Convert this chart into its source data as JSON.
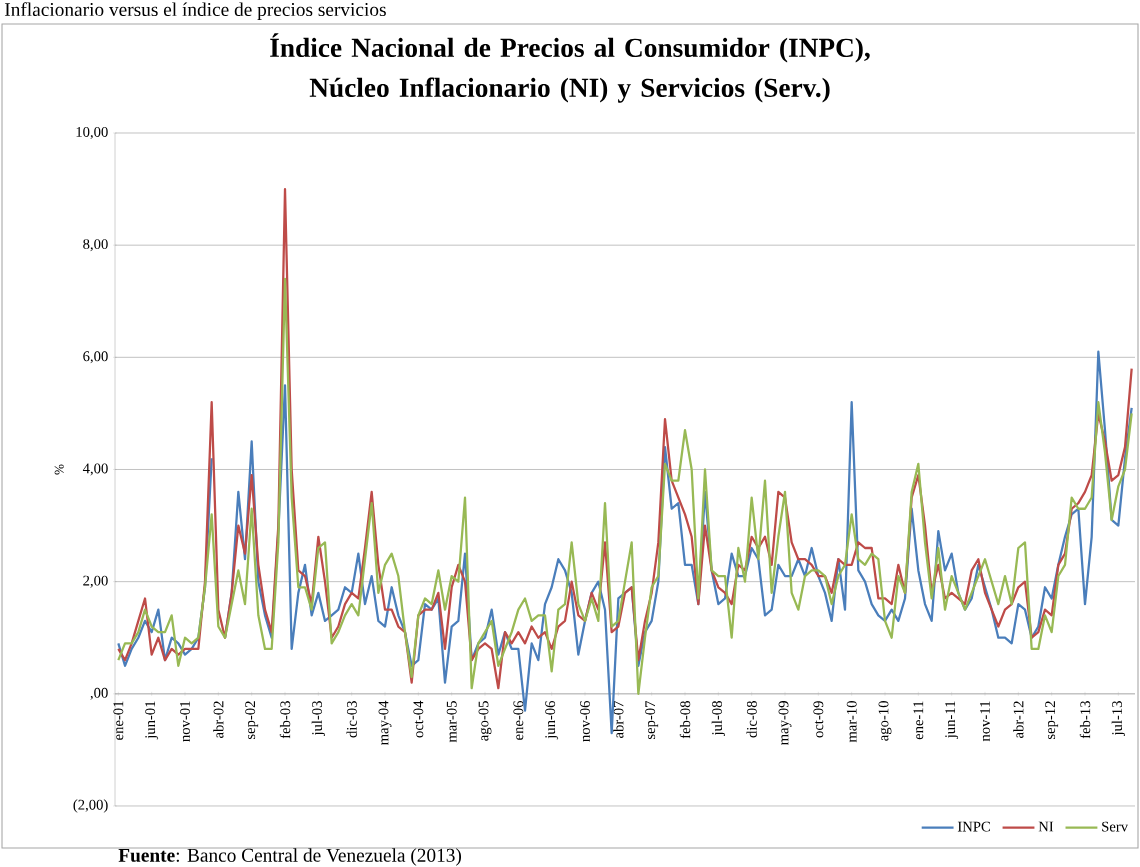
{
  "chart_data": {
    "type": "line",
    "title": "Índice Nacional de Precios al Consumidor (INPC), Núcleo Inflacionario (NI) y Servicios (Serv.)",
    "ylabel": "%",
    "annotations": [
      "Inflacionario versus el índice de precios servicios",
      "**Fuente**: Banco Central de Venezuela (2013)"
    ],
    "categories": [
      "ene-01",
      null,
      null,
      null,
      null,
      "jun-01",
      null,
      null,
      null,
      null,
      "nov-01",
      null,
      null,
      null,
      null,
      "abr-02",
      null,
      null,
      null,
      null,
      "sep-02",
      null,
      null,
      null,
      null,
      "feb-03",
      null,
      null,
      null,
      null,
      "jul-03",
      null,
      null,
      null,
      null,
      "dic-03",
      null,
      null,
      null,
      null,
      "may-04",
      null,
      null,
      null,
      null,
      "oct-04",
      null,
      null,
      null,
      null,
      "mar-05",
      null,
      null,
      null,
      null,
      "ago-05",
      null,
      null,
      null,
      null,
      "ene-06",
      null,
      null,
      null,
      null,
      "jun-06",
      null,
      null,
      null,
      null,
      "nov-06",
      null,
      null,
      null,
      null,
      "abr-07",
      null,
      null,
      null,
      null,
      "sep-07",
      null,
      null,
      null,
      null,
      "feb-08",
      null,
      null,
      null,
      null,
      "jul-08",
      null,
      null,
      null,
      null,
      "dic-08",
      null,
      null,
      null,
      null,
      "may-09",
      null,
      null,
      null,
      null,
      "oct-09",
      null,
      null,
      null,
      null,
      "mar-10",
      null,
      null,
      null,
      null,
      "ago-10",
      null,
      null,
      null,
      null,
      "ene-11",
      null,
      null,
      null,
      null,
      "jun-11",
      null,
      null,
      null,
      null,
      "nov-11",
      null,
      null,
      null,
      null,
      "abr-12",
      null,
      null,
      null,
      null,
      "sep-12",
      null,
      null,
      null,
      null,
      "feb-13",
      null,
      null,
      null,
      null,
      "jul-13",
      null,
      null
    ],
    "series": [
      {
        "name": "INPC",
        "color": "#4a7ebb",
        "values": [
          0.9,
          0.5,
          0.8,
          1.0,
          1.3,
          1.1,
          1.5,
          0.6,
          1.0,
          0.9,
          0.7,
          0.8,
          1.0,
          1.9,
          4.2,
          null,
          1.0,
          1.8,
          3.6,
          2.4,
          4.5,
          2.0,
          1.4,
          1.0,
          2.9,
          5.5,
          0.8,
          1.8,
          2.3,
          1.4,
          1.8,
          1.3,
          1.4,
          1.5,
          1.9,
          1.8,
          2.5,
          1.6,
          2.1,
          1.3,
          1.2,
          1.9,
          1.4,
          1.1,
          0.5,
          0.6,
          1.6,
          1.5,
          1.7,
          0.2,
          1.2,
          1.3,
          2.5,
          0.6,
          0.9,
          1.0,
          1.5,
          0.7,
          1.1,
          0.8,
          0.8,
          -0.3,
          0.9,
          0.6,
          1.6,
          1.9,
          2.4,
          2.2,
          1.8,
          0.7,
          1.3,
          1.8,
          2.0,
          1.5,
          -0.7,
          1.7,
          1.8,
          1.9,
          0.5,
          1.1,
          1.3,
          2.0,
          4.4,
          3.3,
          3.4,
          2.3,
          2.3,
          1.6,
          3.6,
          2.2,
          1.6,
          1.7,
          2.5,
          2.1,
          2.1,
          2.6,
          2.4,
          1.4,
          1.5,
          2.3,
          2.1,
          2.1,
          2.4,
          2.1,
          2.6,
          2.1,
          1.8,
          1.3,
          2.4,
          1.5,
          5.2,
          2.2,
          2.0,
          1.6,
          1.4,
          1.3,
          1.5,
          1.3,
          1.7,
          3.3,
          2.2,
          1.6,
          1.3,
          2.9,
          2.2,
          2.5,
          1.8,
          1.5,
          1.7,
          2.3,
          1.9,
          1.5,
          1.0,
          1.0,
          0.9,
          1.6,
          1.5,
          1.0,
          1.2,
          1.9,
          1.7,
          2.3,
          2.8,
          3.2,
          3.3,
          1.6,
          2.8,
          6.1,
          4.7,
          3.1,
          3.0,
          4.2,
          5.1
        ]
      },
      {
        "name": "NI",
        "color": "#be4b48",
        "values": [
          0.8,
          0.6,
          0.9,
          1.3,
          1.7,
          0.7,
          1.0,
          0.6,
          0.8,
          0.7,
          0.8,
          0.8,
          0.8,
          2.0,
          5.2,
          1.5,
          1.0,
          1.8,
          3.0,
          2.5,
          3.9,
          2.3,
          1.5,
          1.1,
          3.0,
          9.0,
          4.0,
          2.2,
          2.1,
          1.6,
          2.8,
          2.0,
          1.0,
          1.2,
          1.6,
          1.8,
          1.7,
          2.6,
          3.6,
          2.3,
          1.5,
          1.5,
          1.2,
          1.1,
          0.2,
          1.4,
          1.5,
          1.5,
          1.8,
          0.8,
          1.9,
          2.3,
          2.0,
          0.6,
          0.8,
          0.9,
          0.8,
          0.1,
          1.1,
          0.9,
          1.1,
          0.9,
          1.2,
          1.0,
          1.1,
          0.8,
          1.2,
          1.3,
          2.0,
          1.4,
          1.3,
          1.8,
          1.5,
          2.7,
          1.1,
          1.2,
          1.8,
          1.9,
          0.6,
          1.3,
          1.8,
          2.7,
          4.9,
          3.8,
          3.5,
          3.2,
          2.8,
          1.6,
          3.0,
          2.2,
          1.9,
          1.8,
          1.6,
          2.3,
          2.2,
          2.8,
          2.6,
          2.8,
          2.3,
          3.6,
          3.5,
          2.7,
          2.4,
          2.4,
          2.3,
          2.1,
          2.1,
          1.8,
          2.4,
          2.3,
          2.3,
          2.7,
          2.6,
          2.6,
          1.7,
          1.7,
          1.6,
          2.3,
          1.8,
          3.5,
          3.9,
          3.0,
          1.8,
          2.3,
          1.7,
          1.8,
          1.7,
          1.6,
          2.2,
          2.4,
          1.8,
          1.5,
          1.2,
          1.5,
          1.6,
          1.9,
          2.0,
          1.0,
          1.1,
          1.5,
          1.4,
          2.3,
          2.5,
          3.3,
          3.4,
          3.6,
          3.9,
          5.0,
          4.5,
          3.8,
          3.9,
          4.4,
          5.8
        ]
      },
      {
        "name": "Serv",
        "color": "#98b954",
        "values": [
          0.6,
          0.9,
          0.9,
          1.1,
          1.5,
          1.2,
          1.1,
          1.1,
          1.4,
          0.5,
          1.0,
          0.9,
          1.0,
          1.9,
          3.2,
          1.2,
          1.0,
          1.6,
          2.2,
          1.6,
          3.3,
          1.4,
          0.8,
          0.8,
          2.7,
          7.4,
          3.5,
          1.9,
          1.9,
          1.5,
          2.6,
          2.7,
          0.9,
          1.1,
          1.4,
          1.6,
          1.4,
          2.4,
          3.4,
          1.8,
          2.3,
          2.5,
          2.1,
          1.1,
          0.3,
          1.4,
          1.7,
          1.6,
          2.2,
          1.5,
          2.1,
          2.0,
          3.5,
          0.1,
          0.9,
          1.1,
          1.3,
          0.5,
          0.8,
          1.1,
          1.5,
          1.7,
          1.3,
          1.4,
          1.4,
          0.4,
          1.5,
          1.6,
          2.7,
          1.6,
          1.3,
          1.7,
          1.3,
          3.4,
          1.2,
          1.3,
          2.0,
          2.7,
          0.0,
          1.0,
          1.9,
          2.1,
          4.1,
          3.8,
          3.8,
          4.7,
          4.0,
          1.7,
          4.0,
          2.2,
          2.1,
          2.1,
          1.0,
          2.6,
          2.0,
          3.5,
          2.4,
          3.8,
          1.8,
          2.8,
          3.6,
          1.8,
          1.5,
          2.1,
          2.2,
          2.2,
          2.1,
          1.6,
          2.1,
          2.3,
          3.2,
          2.4,
          2.3,
          2.5,
          2.4,
          1.3,
          1.0,
          2.1,
          1.8,
          3.6,
          4.1,
          2.7,
          1.7,
          2.6,
          1.5,
          2.1,
          1.8,
          1.5,
          1.8,
          2.1,
          2.4,
          2.0,
          1.6,
          2.1,
          1.6,
          2.6,
          2.7,
          0.8,
          0.8,
          1.4,
          1.1,
          2.1,
          2.3,
          3.5,
          3.3,
          3.3,
          3.5,
          5.2,
          4.3,
          3.1,
          3.7,
          4.0,
          5.0
        ]
      }
    ],
    "ylim": [
      -2,
      10
    ],
    "yticks": [
      {
        "value": -2,
        "label": "(2,00)"
      },
      {
        "value": 0,
        "label": ",00"
      },
      {
        "value": 2,
        "label": "2,00"
      },
      {
        "value": 4,
        "label": "4,00"
      },
      {
        "value": 6,
        "label": "6,00"
      },
      {
        "value": 8,
        "label": "8,00"
      },
      {
        "value": 10,
        "label": "10,00"
      }
    ],
    "grid": "y",
    "legend": "bottom right"
  }
}
